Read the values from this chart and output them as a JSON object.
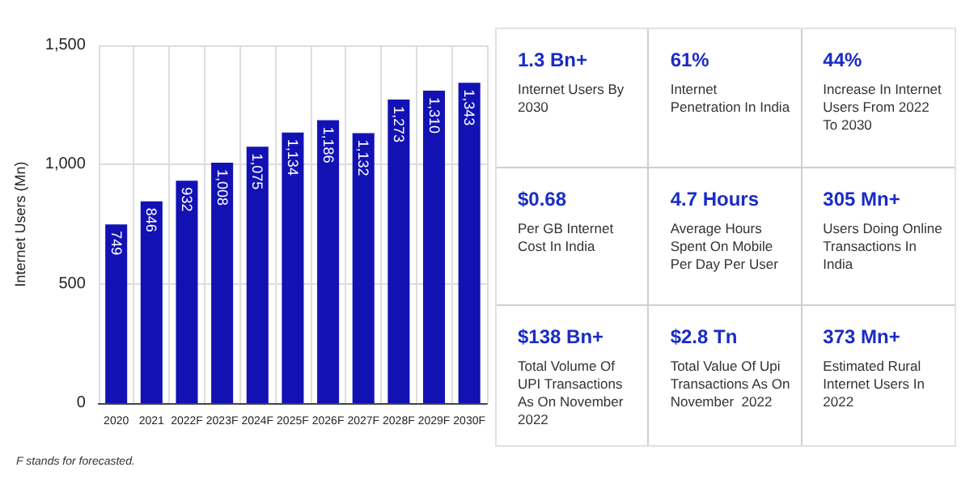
{
  "chart_data": [
    {
      "type": "bar",
      "ylabel": "Internet Users (Mn)",
      "categories": [
        "2020",
        "2021",
        "2022F",
        "2023F",
        "2024F",
        "2025F",
        "2026F",
        "2027F",
        "2028F",
        "2029F",
        "2030F"
      ],
      "values": [
        749,
        846,
        932,
        1008,
        1075,
        1134,
        1186,
        1132,
        1273,
        1310,
        1343
      ],
      "value_labels": [
        "749",
        "846",
        "932",
        "1,008",
        "1,075",
        "1,134",
        "1,186",
        "1,132",
        "1,273",
        "1,310",
        "1,343"
      ],
      "color": "#1212b4",
      "ylim": [
        0,
        1500
      ],
      "yticks": [
        0,
        500,
        {
          "value": 1000,
          "label": "1,000"
        },
        {
          "value": 1500,
          "label": "1,500"
        }
      ],
      "grid": true,
      "annotations": [
        "F stands for forecasted."
      ]
    },
    {
      "type": "other",
      "color": "#1a2cc4",
      "annotations": [
        "1.3 Bn+",
        "Internet Users By 2030",
        "61%",
        "Internet Penetration In India",
        "44%",
        "Increase In Internet Users From 2022 To 2030",
        "$0.68",
        "Per GB Internet Cost In India",
        "4.7 Hours",
        "Average Hours Spent On Mobile Per Day Per User",
        "305 Mn+",
        "Users Doing Online Transactions In India",
        "$138 Bn+",
        "Total Volume Of UPI Transactions As On November  2022",
        "$2.8 Tn",
        "Total Value Of Upi Transactions As On November  2022",
        "373 Mn+",
        "Estimated Rural Internet Users In 2022"
      ]
    }
  ]
}
